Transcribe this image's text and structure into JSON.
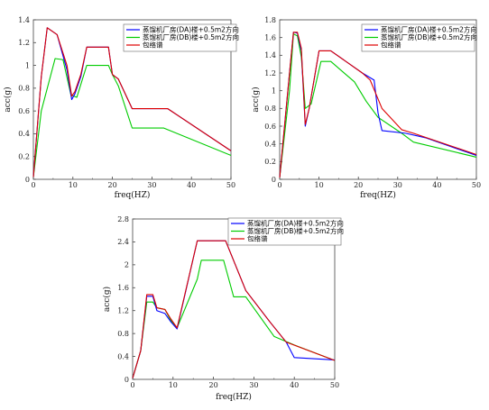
{
  "chart_data": [
    {
      "type": "line",
      "xlabel": "freq(HZ)",
      "ylabel": "acc(g)",
      "xlim": [
        0,
        50
      ],
      "ylim": [
        0,
        1.4
      ],
      "xticks": [
        0,
        10,
        20,
        30,
        40,
        50
      ],
      "yticks": [
        0.0,
        0.2,
        0.4,
        0.6,
        0.8,
        1.0,
        1.2,
        1.4
      ],
      "ytick_labels": [
        "0",
        "0.2",
        "0.4",
        "0.6",
        "0.8",
        "1",
        "1.2",
        "1.4"
      ],
      "legend": {
        "position": "top-right"
      },
      "series": [
        {
          "name": "蒸馏机厂房(DA)楼+0.5m2方向",
          "color": "#0000ff",
          "x": [
            0,
            2,
            3.5,
            6,
            8.5,
            9.7,
            10.5,
            12,
            13.5,
            19,
            20,
            21.5,
            25,
            34,
            50
          ],
          "y": [
            0.02,
            0.9,
            1.33,
            1.27,
            0.96,
            0.7,
            0.75,
            0.9,
            1.16,
            1.16,
            0.92,
            0.88,
            0.62,
            0.62,
            0.25
          ]
        },
        {
          "name": "蒸馏机厂房(DB)楼+0.5m2方向",
          "color": "#00cc00",
          "x": [
            0,
            2,
            5.5,
            7.5,
            9.5,
            11,
            13.5,
            19,
            20,
            21.5,
            25,
            33,
            50
          ],
          "y": [
            0.02,
            0.6,
            1.06,
            1.05,
            0.74,
            0.72,
            1.0,
            1.0,
            0.92,
            0.82,
            0.45,
            0.45,
            0.21
          ]
        },
        {
          "name": "包络谱",
          "color": "#dd0000",
          "x": [
            0,
            2,
            3.5,
            6,
            8.5,
            9.7,
            10.5,
            12,
            13.5,
            19,
            20,
            21.5,
            25,
            34,
            50
          ],
          "y": [
            0.02,
            0.9,
            1.33,
            1.27,
            1.0,
            0.73,
            0.77,
            0.92,
            1.16,
            1.16,
            0.92,
            0.88,
            0.62,
            0.62,
            0.25
          ]
        }
      ]
    },
    {
      "type": "line",
      "xlabel": "freq(HZ)",
      "ylabel": "acc(g)",
      "xlim": [
        0,
        50
      ],
      "ylim": [
        0,
        1.8
      ],
      "xticks": [
        0,
        10,
        20,
        30,
        40,
        50
      ],
      "yticks": [
        0.0,
        0.2,
        0.4,
        0.6,
        0.8,
        1.0,
        1.2,
        1.4,
        1.6,
        1.8
      ],
      "ytick_labels": [
        "0",
        "0.2",
        "0.4",
        "0.6",
        "0.8",
        "1",
        "1.2",
        "1.4",
        "1.6",
        "1.8"
      ],
      "legend": {
        "position": "top-right"
      },
      "series": [
        {
          "name": "蒸馏机厂房(DA)楼+0.5m2方向",
          "color": "#0000ff",
          "x": [
            0,
            2.5,
            3.5,
            4.5,
            5.5,
            6.5,
            7.5,
            10,
            13,
            21,
            24,
            25,
            26,
            32,
            37,
            50
          ],
          "y": [
            0.02,
            1.2,
            1.66,
            1.65,
            1.45,
            0.6,
            0.8,
            1.45,
            1.45,
            1.2,
            1.12,
            0.75,
            0.55,
            0.52,
            0.47,
            0.27
          ]
        },
        {
          "name": "蒸馏机厂房(DB)楼+0.5m2方向",
          "color": "#00cc00",
          "x": [
            0,
            2.5,
            3.5,
            4.5,
            5.5,
            6.5,
            8,
            10.5,
            13,
            19,
            22,
            25,
            31,
            34,
            50
          ],
          "y": [
            0.02,
            1.0,
            1.64,
            1.62,
            1.38,
            0.8,
            0.85,
            1.33,
            1.33,
            1.1,
            0.88,
            0.7,
            0.52,
            0.42,
            0.25
          ]
        },
        {
          "name": "包络谱",
          "color": "#dd0000",
          "x": [
            0,
            2.5,
            3.5,
            4.5,
            5.5,
            6.5,
            7.5,
            10,
            13,
            21,
            23,
            26,
            31,
            34,
            50
          ],
          "y": [
            0.02,
            1.2,
            1.66,
            1.66,
            1.48,
            0.62,
            0.8,
            1.45,
            1.45,
            1.2,
            1.12,
            0.8,
            0.56,
            0.52,
            0.28
          ]
        }
      ]
    },
    {
      "type": "line",
      "xlabel": "freq(HZ)",
      "ylabel": "acc(g)",
      "xlim": [
        0,
        50
      ],
      "ylim": [
        0,
        2.8
      ],
      "xticks": [
        0,
        10,
        20,
        30,
        40,
        50
      ],
      "yticks": [
        0.0,
        0.4,
        0.8,
        1.2,
        1.6,
        2.0,
        2.4,
        2.8
      ],
      "ytick_labels": [
        "0",
        "0.4",
        "0.8",
        "1.2",
        "1.6",
        "2",
        "2.4",
        "2.8"
      ],
      "legend": {
        "position": "top-right"
      },
      "series": [
        {
          "name": "蒸馏机厂房(DA)楼+0.5m2方向",
          "color": "#0000ff",
          "x": [
            0,
            2,
            3.5,
            5,
            6,
            8,
            9.5,
            11,
            16,
            23,
            28,
            34,
            38,
            40,
            50
          ],
          "y": [
            0.02,
            0.5,
            1.45,
            1.45,
            1.2,
            1.15,
            1.0,
            0.88,
            2.42,
            2.42,
            1.55,
            1.0,
            0.65,
            0.38,
            0.34
          ]
        },
        {
          "name": "蒸馏机厂房(DB)楼+0.5m2方向",
          "color": "#00cc00",
          "x": [
            0,
            2,
            3.5,
            5,
            6,
            8,
            9.5,
            11,
            16,
            17,
            22.5,
            25,
            28,
            35,
            40,
            50
          ],
          "y": [
            0.02,
            0.5,
            1.35,
            1.35,
            1.25,
            1.22,
            1.02,
            0.9,
            1.75,
            2.08,
            2.08,
            1.44,
            1.44,
            0.75,
            0.6,
            0.33
          ]
        },
        {
          "name": "包络谱",
          "color": "#dd0000",
          "x": [
            0,
            2,
            3.5,
            5,
            6,
            8,
            9.5,
            11,
            16,
            23,
            28,
            34,
            38,
            50
          ],
          "y": [
            0.02,
            0.5,
            1.48,
            1.48,
            1.25,
            1.22,
            1.05,
            0.9,
            2.42,
            2.42,
            1.55,
            1.0,
            0.65,
            0.33
          ]
        }
      ]
    }
  ]
}
